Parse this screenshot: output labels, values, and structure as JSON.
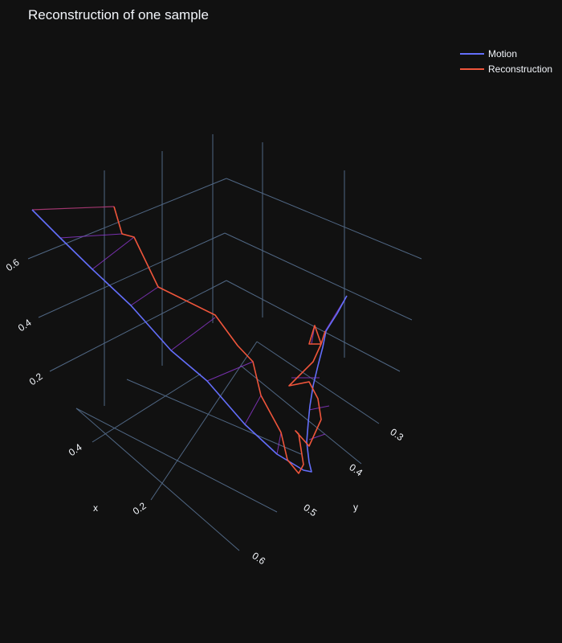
{
  "title": "Reconstruction of one sample",
  "colors": {
    "background": "#111111",
    "grid": "#506784",
    "text": "#f2f5fa",
    "motion": "#636efa",
    "reconstruction": "#ef553b",
    "connector": "#8a36c9"
  },
  "chart_data": {
    "type": "line3d",
    "title": "Reconstruction of one sample",
    "legend": "top-right",
    "axes": {
      "x": {
        "label": "x",
        "ticks": [
          "0.2",
          "0.4",
          "0.6"
        ]
      },
      "y": {
        "label": "y",
        "ticks": [
          "0.3",
          "0.4",
          "0.5"
        ]
      },
      "z": {
        "label": "",
        "ticks": [
          "0.2",
          "0.4",
          "0.6"
        ]
      }
    },
    "series": [
      {
        "name": "Motion"
      },
      {
        "name": "Reconstruction"
      }
    ]
  }
}
